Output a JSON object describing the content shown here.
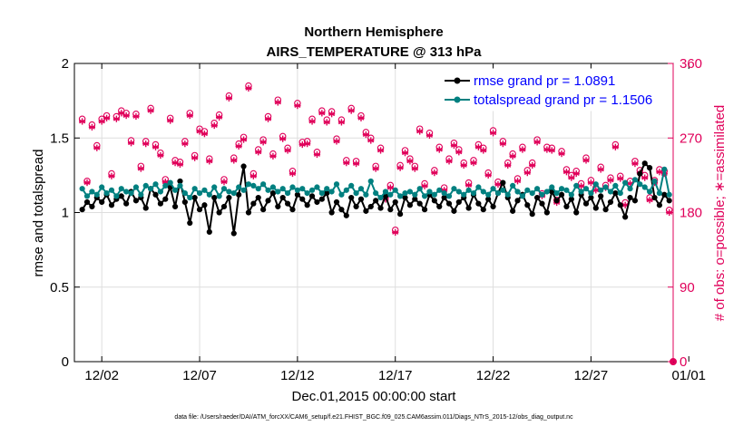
{
  "chart_data": {
    "type": "line",
    "title": "Northern Hemisphere",
    "subtitle": "AIRS_TEMPERATURE @ 313 hPa",
    "xlabel": "Dec.01,2015 00:00:00 start",
    "ylabel": "rmse and totalspread",
    "ylabel_right": "# of obs: o=possible; ∗=assimilated",
    "footnote": "data file: /Users/raeder/DAI/ATM_forcXX/CAM6_setup/f.e21.FHIST_BGC.f09_025.CAM6assim.011/Diags_NTrS_2015-12/obs_diag_output.nc",
    "xlim": [
      0.6,
      31.2
    ],
    "ylim": [
      0,
      2
    ],
    "ylim_right": [
      0,
      360
    ],
    "x_ticks": [
      2,
      7,
      12,
      17,
      22,
      27,
      32
    ],
    "x_tick_labels": [
      "12/02",
      "12/07",
      "12/12",
      "12/17",
      "12/22",
      "12/27",
      "01/01"
    ],
    "y_ticks": [
      0,
      0.5,
      1,
      1.5,
      2
    ],
    "y_tick_labels": [
      "0",
      "0.5",
      "1",
      "1.5",
      "2"
    ],
    "y_right_ticks": [
      0,
      90,
      180,
      270,
      360
    ],
    "y_right_tick_labels": [
      "0",
      "90",
      "180",
      "270",
      "360"
    ],
    "grid": true,
    "legend_position": "top-right",
    "series": [
      {
        "name": "rmse grand pr = 1.0891",
        "color": "#000000",
        "marker": "dot",
        "x": [
          1.0,
          1.25,
          1.5,
          1.75,
          2.0,
          2.25,
          2.5,
          2.75,
          3.0,
          3.25,
          3.5,
          3.75,
          4.0,
          4.25,
          4.5,
          4.75,
          5.0,
          5.25,
          5.5,
          5.75,
          6.0,
          6.25,
          6.5,
          6.75,
          7.0,
          7.25,
          7.5,
          7.75,
          8.0,
          8.25,
          8.5,
          8.75,
          9.0,
          9.25,
          9.5,
          9.75,
          10.0,
          10.25,
          10.5,
          10.75,
          11.0,
          11.25,
          11.5,
          11.75,
          12.0,
          12.25,
          12.5,
          12.75,
          13.0,
          13.25,
          13.5,
          13.75,
          14.0,
          14.25,
          14.5,
          14.75,
          15.0,
          15.25,
          15.5,
          15.75,
          16.0,
          16.25,
          16.5,
          16.75,
          17.0,
          17.25,
          17.5,
          17.75,
          18.0,
          18.25,
          18.5,
          18.75,
          19.0,
          19.25,
          19.5,
          19.75,
          20.0,
          20.25,
          20.5,
          20.75,
          21.0,
          21.25,
          21.5,
          21.75,
          22.0,
          22.25,
          22.5,
          22.75,
          23.0,
          23.25,
          23.5,
          23.75,
          24.0,
          24.25,
          24.5,
          24.75,
          25.0,
          25.25,
          25.5,
          25.75,
          26.0,
          26.25,
          26.5,
          26.75,
          27.0,
          27.25,
          27.5,
          27.75,
          28.0,
          28.25,
          28.5,
          28.75,
          29.0,
          29.25,
          29.5,
          29.75,
          30.0,
          30.25,
          30.5,
          30.75,
          31.0
        ],
        "values": [
          1.02,
          1.07,
          1.04,
          1.1,
          1.07,
          1.12,
          1.05,
          1.09,
          1.11,
          1.06,
          1.14,
          1.08,
          1.1,
          1.03,
          1.16,
          1.12,
          1.06,
          1.09,
          1.17,
          1.04,
          1.21,
          1.07,
          0.93,
          1.1,
          1.02,
          1.05,
          0.87,
          1.1,
          1.0,
          1.04,
          1.1,
          0.86,
          1.12,
          1.31,
          1.0,
          1.06,
          1.1,
          1.02,
          1.08,
          1.13,
          1.04,
          1.1,
          1.06,
          1.02,
          1.12,
          1.09,
          1.05,
          1.11,
          1.07,
          1.09,
          1.13,
          1.0,
          1.07,
          1.02,
          0.98,
          1.1,
          1.04,
          1.09,
          1.01,
          1.04,
          1.08,
          1.03,
          1.11,
          1.02,
          1.07,
          0.99,
          1.1,
          1.05,
          1.09,
          1.06,
          1.02,
          1.12,
          1.08,
          1.04,
          1.1,
          1.06,
          1.01,
          1.07,
          1.1,
          1.03,
          1.12,
          1.06,
          1.02,
          1.09,
          1.04,
          1.13,
          1.2,
          1.1,
          1.01,
          1.08,
          1.12,
          1.05,
          0.99,
          1.1,
          1.06,
          1.0,
          1.14,
          1.08,
          1.12,
          1.04,
          1.09,
          1.0,
          1.12,
          1.06,
          1.1,
          1.03,
          1.11,
          1.02,
          1.07,
          1.13,
          1.05,
          0.97,
          1.1,
          1.08,
          1.26,
          1.33,
          1.3,
          1.1,
          1.05,
          1.12,
          1.08
        ]
      },
      {
        "name": "totalspread grand pr = 1.1506",
        "color": "#008080",
        "marker": "dot",
        "x": [
          1.0,
          1.25,
          1.5,
          1.75,
          2.0,
          2.25,
          2.5,
          2.75,
          3.0,
          3.25,
          3.5,
          3.75,
          4.0,
          4.25,
          4.5,
          4.75,
          5.0,
          5.25,
          5.5,
          5.75,
          6.0,
          6.25,
          6.5,
          6.75,
          7.0,
          7.25,
          7.5,
          7.75,
          8.0,
          8.25,
          8.5,
          8.75,
          9.0,
          9.25,
          9.5,
          9.75,
          10.0,
          10.25,
          10.5,
          10.75,
          11.0,
          11.25,
          11.5,
          11.75,
          12.0,
          12.25,
          12.5,
          12.75,
          13.0,
          13.25,
          13.5,
          13.75,
          14.0,
          14.25,
          14.5,
          14.75,
          15.0,
          15.25,
          15.5,
          15.75,
          16.0,
          16.25,
          16.5,
          16.75,
          17.0,
          17.25,
          17.5,
          17.75,
          18.0,
          18.25,
          18.5,
          18.75,
          19.0,
          19.25,
          19.5,
          19.75,
          20.0,
          20.25,
          20.5,
          20.75,
          21.0,
          21.25,
          21.5,
          21.75,
          22.0,
          22.25,
          22.5,
          22.75,
          23.0,
          23.25,
          23.5,
          23.75,
          24.0,
          24.25,
          24.5,
          24.75,
          25.0,
          25.25,
          25.5,
          25.75,
          26.0,
          26.25,
          26.5,
          26.75,
          27.0,
          27.25,
          27.5,
          27.75,
          28.0,
          28.25,
          28.5,
          28.75,
          29.0,
          29.25,
          29.5,
          29.75,
          30.0,
          30.25,
          30.5,
          30.75,
          31.0
        ],
        "values": [
          1.16,
          1.11,
          1.14,
          1.12,
          1.17,
          1.13,
          1.15,
          1.11,
          1.16,
          1.14,
          1.13,
          1.17,
          1.12,
          1.18,
          1.16,
          1.19,
          1.14,
          1.18,
          1.2,
          1.15,
          1.18,
          1.13,
          1.1,
          1.16,
          1.13,
          1.15,
          1.12,
          1.17,
          1.11,
          1.16,
          1.14,
          1.13,
          1.17,
          1.15,
          1.19,
          1.18,
          1.16,
          1.19,
          1.15,
          1.17,
          1.14,
          1.16,
          1.13,
          1.17,
          1.15,
          1.16,
          1.13,
          1.15,
          1.17,
          1.13,
          1.16,
          1.14,
          1.19,
          1.12,
          1.15,
          1.18,
          1.13,
          1.16,
          1.12,
          1.21,
          1.13,
          1.1,
          1.14,
          1.12,
          1.15,
          1.11,
          1.13,
          1.14,
          1.12,
          1.16,
          1.11,
          1.14,
          1.12,
          1.15,
          1.13,
          1.11,
          1.16,
          1.14,
          1.12,
          1.15,
          1.13,
          1.17,
          1.14,
          1.12,
          1.16,
          1.13,
          1.15,
          1.12,
          1.18,
          1.14,
          1.11,
          1.15,
          1.13,
          1.16,
          1.12,
          1.14,
          1.17,
          1.13,
          1.16,
          1.15,
          1.12,
          1.18,
          1.14,
          1.16,
          1.13,
          1.19,
          1.15,
          1.17,
          1.14,
          1.18,
          1.13,
          1.2,
          1.16,
          1.22,
          1.19,
          1.17,
          1.14,
          1.21,
          1.13,
          1.29,
          1.12
        ]
      }
    ],
    "obs_possible": {
      "name": "# of obs: possible",
      "color": "#e0005a",
      "marker": "o",
      "x": [
        1.0,
        1.25,
        1.5,
        1.75,
        2.0,
        2.25,
        2.5,
        2.75,
        3.0,
        3.25,
        3.5,
        3.75,
        4.0,
        4.25,
        4.5,
        4.75,
        5.0,
        5.25,
        5.5,
        5.75,
        6.0,
        6.25,
        6.5,
        6.75,
        7.0,
        7.25,
        7.5,
        7.75,
        8.0,
        8.25,
        8.5,
        8.75,
        9.0,
        9.25,
        9.5,
        9.75,
        10.0,
        10.25,
        10.5,
        10.75,
        11.0,
        11.25,
        11.5,
        11.75,
        12.0,
        12.25,
        12.5,
        12.75,
        13.0,
        13.25,
        13.5,
        13.75,
        14.0,
        14.25,
        14.5,
        14.75,
        15.0,
        15.25,
        15.5,
        15.75,
        16.0,
        16.25,
        16.5,
        16.75,
        17.0,
        17.25,
        17.5,
        17.75,
        18.0,
        18.25,
        18.5,
        18.75,
        19.0,
        19.25,
        19.5,
        19.75,
        20.0,
        20.25,
        20.5,
        20.75,
        21.0,
        21.25,
        21.5,
        21.75,
        22.0,
        22.25,
        22.5,
        22.75,
        23.0,
        23.25,
        23.5,
        23.75,
        24.0,
        24.25,
        24.5,
        24.75,
        25.0,
        25.25,
        25.5,
        25.75,
        26.0,
        26.25,
        26.5,
        26.75,
        27.0,
        27.25,
        27.5,
        27.75,
        28.0,
        28.25,
        28.5,
        28.75,
        29.0,
        29.25,
        29.5,
        29.75,
        30.0,
        30.25,
        30.5,
        30.75,
        31.0
      ],
      "values": [
        293,
        218,
        286,
        261,
        293,
        297,
        227,
        296,
        303,
        300,
        267,
        299,
        236,
        266,
        306,
        262,
        252,
        220,
        294,
        243,
        241,
        266,
        300,
        249,
        281,
        278,
        245,
        288,
        298,
        220,
        321,
        246,
        263,
        271,
        333,
        227,
        256,
        268,
        296,
        251,
        316,
        272,
        258,
        230,
        312,
        265,
        266,
        293,
        253,
        303,
        292,
        302,
        269,
        292,
        243,
        306,
        242,
        297,
        277,
        270,
        236,
        258,
        199,
        213,
        159,
        237,
        255,
        245,
        236,
        281,
        215,
        276,
        231,
        259,
        210,
        245,
        264,
        256,
        240,
        216,
        243,
        262,
        258,
        228,
        279,
        217,
        266,
        240,
        251,
        221,
        259,
        231,
        240,
        268,
        203,
        259,
        258,
        195,
        254,
        232,
        225,
        230,
        215,
        246,
        219,
        210,
        235,
        213,
        222,
        262,
        224,
        192,
        218,
        242,
        231,
        225,
        198,
        219,
        232,
        230,
        183
      ]
    },
    "obs_assimilated": {
      "name": "# of obs: assimilated",
      "color": "#e0005a",
      "marker": "*",
      "x": [
        1.0,
        1.25,
        1.5,
        1.75,
        2.0,
        2.25,
        2.5,
        2.75,
        3.0,
        3.25,
        3.5,
        3.75,
        4.0,
        4.25,
        4.5,
        4.75,
        5.0,
        5.25,
        5.5,
        5.75,
        6.0,
        6.25,
        6.5,
        6.75,
        7.0,
        7.25,
        7.5,
        7.75,
        8.0,
        8.25,
        8.5,
        8.75,
        9.0,
        9.25,
        9.5,
        9.75,
        10.0,
        10.25,
        10.5,
        10.75,
        11.0,
        11.25,
        11.5,
        11.75,
        12.0,
        12.25,
        12.5,
        12.75,
        13.0,
        13.25,
        13.5,
        13.75,
        14.0,
        14.25,
        14.5,
        14.75,
        15.0,
        15.25,
        15.5,
        15.75,
        16.0,
        16.25,
        16.5,
        16.75,
        17.0,
        17.25,
        17.5,
        17.75,
        18.0,
        18.25,
        18.5,
        18.75,
        19.0,
        19.25,
        19.5,
        19.75,
        20.0,
        20.25,
        20.5,
        20.75,
        21.0,
        21.25,
        21.5,
        21.75,
        22.0,
        22.25,
        22.5,
        22.75,
        23.0,
        23.25,
        23.5,
        23.75,
        24.0,
        24.25,
        24.5,
        24.75,
        25.0,
        25.25,
        25.5,
        25.75,
        26.0,
        26.25,
        26.5,
        26.75,
        27.0,
        27.25,
        27.5,
        27.75,
        28.0,
        28.25,
        28.5,
        28.75,
        29.0,
        29.25,
        29.5,
        29.75,
        30.0,
        30.25,
        30.5,
        30.75,
        31.0
      ],
      "values": [
        290,
        216,
        283,
        258,
        290,
        294,
        224,
        293,
        300,
        297,
        264,
        296,
        233,
        263,
        303,
        259,
        249,
        217,
        291,
        240,
        238,
        263,
        297,
        246,
        278,
        275,
        242,
        285,
        295,
        217,
        318,
        243,
        260,
        268,
        330,
        224,
        253,
        265,
        293,
        248,
        313,
        269,
        255,
        227,
        309,
        262,
        263,
        290,
        250,
        300,
        289,
        299,
        266,
        289,
        240,
        303,
        239,
        294,
        274,
        267,
        233,
        255,
        196,
        210,
        156,
        234,
        252,
        242,
        233,
        278,
        212,
        273,
        228,
        256,
        207,
        242,
        261,
        253,
        237,
        213,
        240,
        259,
        255,
        225,
        276,
        214,
        263,
        237,
        248,
        218,
        256,
        228,
        237,
        265,
        200,
        256,
        255,
        192,
        251,
        229,
        222,
        227,
        212,
        243,
        216,
        207,
        232,
        210,
        219,
        259,
        221,
        189,
        215,
        239,
        228,
        222,
        195,
        216,
        229,
        227,
        180
      ]
    },
    "obs_possible_end": {
      "x": 31.2,
      "value": 0
    },
    "legend": [
      "rmse grand pr = 1.0891",
      "totalspread grand pr = 1.1506"
    ]
  }
}
